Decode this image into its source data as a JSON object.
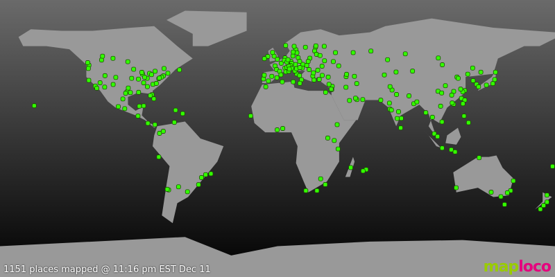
{
  "status": "1151 places mapped @ 11:16 pm EST Dec 11",
  "logo": {
    "part1": "map",
    "part2": "loco"
  },
  "colors": {
    "land": "#999999",
    "marker": "#33ff00",
    "logo_map": "#99cc00",
    "logo_loco": "#e6007e"
  },
  "projection": "equirectangular",
  "markers": [
    [
      -122.4,
      37.8
    ],
    [
      -118.2,
      34.1
    ],
    [
      -117.2,
      32.7
    ],
    [
      -122.3,
      47.6
    ],
    [
      -122.7,
      45.5
    ],
    [
      -123.1,
      49.3
    ],
    [
      -114.1,
      51.0
    ],
    [
      -113.5,
      53.5
    ],
    [
      -104.9,
      39.7
    ],
    [
      -112.1,
      33.4
    ],
    [
      -115.1,
      36.2
    ],
    [
      -111.9,
      40.8
    ],
    [
      -106.6,
      35.1
    ],
    [
      -97.7,
      30.3
    ],
    [
      -96.8,
      32.8
    ],
    [
      -95.4,
      29.8
    ],
    [
      -98.5,
      29.4
    ],
    [
      -90.1,
      30.0
    ],
    [
      -84.4,
      33.7
    ],
    [
      -80.2,
      25.8
    ],
    [
      -81.4,
      28.5
    ],
    [
      -82.5,
      27.9
    ],
    [
      -77.0,
      38.9
    ],
    [
      -74.0,
      40.7
    ],
    [
      -71.1,
      42.4
    ],
    [
      -75.2,
      39.9
    ],
    [
      -79.4,
      43.7
    ],
    [
      -73.6,
      45.5
    ],
    [
      -87.6,
      41.9
    ],
    [
      -83.0,
      42.3
    ],
    [
      -81.7,
      41.5
    ],
    [
      -93.3,
      45.0
    ],
    [
      -90.2,
      38.6
    ],
    [
      -94.6,
      39.1
    ],
    [
      -86.8,
      36.2
    ],
    [
      -80.8,
      35.2
    ],
    [
      -78.6,
      35.8
    ],
    [
      -76.6,
      39.3
    ],
    [
      -84.5,
      39.1
    ],
    [
      -86.2,
      39.8
    ],
    [
      -88.0,
      43.0
    ],
    [
      -97.1,
      49.9
    ],
    [
      -106.7,
      52.1
    ],
    [
      -63.6,
      44.6
    ],
    [
      -99.1,
      19.4
    ],
    [
      -103.3,
      20.7
    ],
    [
      -100.3,
      25.7
    ],
    [
      -89.6,
      21.0
    ],
    [
      -86.8,
      21.2
    ],
    [
      -90.5,
      14.6
    ],
    [
      -84.1,
      9.9
    ],
    [
      -79.5,
      9.0
    ],
    [
      -76.5,
      3.4
    ],
    [
      -74.1,
      4.7
    ],
    [
      -66.9,
      10.5
    ],
    [
      -66.1,
      18.4
    ],
    [
      -61.5,
      16.2
    ],
    [
      -157.8,
      21.3
    ],
    [
      -77.0,
      -12.0
    ],
    [
      -46.6,
      -23.5
    ],
    [
      -43.2,
      -22.9
    ],
    [
      -49.3,
      -25.4
    ],
    [
      -51.2,
      -30.0
    ],
    [
      -58.4,
      -34.6
    ],
    [
      -64.2,
      -31.4
    ],
    [
      -70.6,
      -33.4
    ],
    [
      -71.5,
      -33.0
    ],
    [
      -0.1,
      51.5
    ],
    [
      -2.2,
      53.5
    ],
    [
      -3.2,
      55.9
    ],
    [
      -6.3,
      53.3
    ],
    [
      -8.5,
      51.9
    ],
    [
      2.4,
      48.9
    ],
    [
      4.8,
      45.8
    ],
    [
      5.4,
      43.3
    ],
    [
      -1.6,
      47.2
    ],
    [
      -0.6,
      44.8
    ],
    [
      1.4,
      43.6
    ],
    [
      7.3,
      43.7
    ],
    [
      -3.7,
      40.4
    ],
    [
      2.2,
      41.4
    ],
    [
      -0.4,
      39.5
    ],
    [
      -5.9,
      37.4
    ],
    [
      -9.1,
      38.7
    ],
    [
      -8.6,
      41.2
    ],
    [
      4.9,
      52.4
    ],
    [
      4.4,
      50.8
    ],
    [
      6.1,
      49.6
    ],
    [
      13.4,
      52.5
    ],
    [
      10.0,
      53.6
    ],
    [
      11.6,
      48.1
    ],
    [
      8.7,
      50.1
    ],
    [
      6.8,
      51.2
    ],
    [
      9.2,
      48.8
    ],
    [
      8.5,
      47.4
    ],
    [
      6.1,
      46.2
    ],
    [
      7.4,
      46.9
    ],
    [
      16.4,
      48.2
    ],
    [
      14.4,
      50.1
    ],
    [
      19.0,
      47.5
    ],
    [
      21.0,
      52.2
    ],
    [
      19.9,
      50.1
    ],
    [
      12.5,
      41.9
    ],
    [
      9.2,
      45.5
    ],
    [
      11.3,
      43.8
    ],
    [
      14.3,
      40.9
    ],
    [
      7.7,
      45.1
    ],
    [
      12.3,
      45.4
    ],
    [
      15.6,
      38.2
    ],
    [
      23.7,
      38.0
    ],
    [
      22.9,
      40.6
    ],
    [
      26.1,
      44.4
    ],
    [
      23.3,
      42.7
    ],
    [
      20.5,
      44.8
    ],
    [
      16.0,
      45.8
    ],
    [
      14.5,
      46.1
    ],
    [
      24.1,
      56.9
    ],
    [
      25.3,
      54.7
    ],
    [
      24.7,
      59.4
    ],
    [
      24.9,
      60.2
    ],
    [
      18.1,
      59.3
    ],
    [
      11.9,
      57.7
    ],
    [
      10.8,
      59.9
    ],
    [
      5.3,
      60.4
    ],
    [
      12.6,
      55.7
    ],
    [
      10.2,
      56.2
    ],
    [
      30.3,
      59.9
    ],
    [
      37.6,
      55.8
    ],
    [
      30.5,
      50.5
    ],
    [
      27.6,
      53.9
    ],
    [
      28.9,
      47.0
    ],
    [
      36.2,
      50.0
    ],
    [
      39.7,
      47.2
    ],
    [
      49.1,
      55.8
    ],
    [
      60.6,
      56.8
    ],
    [
      29.0,
      41.0
    ],
    [
      32.9,
      39.9
    ],
    [
      27.1,
      38.4
    ],
    [
      35.5,
      33.9
    ],
    [
      35.2,
      31.8
    ],
    [
      34.8,
      32.1
    ],
    [
      31.2,
      30.0
    ],
    [
      44.4,
      33.3
    ],
    [
      51.4,
      35.7
    ],
    [
      46.7,
      24.7
    ],
    [
      55.3,
      25.3
    ],
    [
      51.5,
      25.3
    ],
    [
      50.6,
      26.2
    ],
    [
      44.5,
      40.2
    ],
    [
      44.8,
      41.7
    ],
    [
      49.9,
      40.4
    ],
    [
      33.4,
      35.2
    ],
    [
      14.5,
      35.9
    ],
    [
      10.2,
      36.8
    ],
    [
      3.1,
      36.8
    ],
    [
      -7.6,
      33.6
    ],
    [
      72.9,
      19.1
    ],
    [
      77.2,
      28.6
    ],
    [
      77.6,
      13.0
    ],
    [
      80.3,
      13.1
    ],
    [
      78.5,
      17.4
    ],
    [
      88.4,
      22.6
    ],
    [
      73.9,
      18.5
    ],
    [
      72.6,
      23.0
    ],
    [
      74.3,
      31.5
    ],
    [
      67.0,
      24.9
    ],
    [
      73.0,
      33.7
    ],
    [
      85.3,
      27.7
    ],
    [
      90.4,
      23.8
    ],
    [
      79.9,
      6.9
    ],
    [
      100.5,
      13.8
    ],
    [
      101.7,
      3.1
    ],
    [
      103.8,
      1.3
    ],
    [
      106.8,
      -6.2
    ],
    [
      112.7,
      -7.3
    ],
    [
      115.2,
      -8.7
    ],
    [
      106.7,
      10.8
    ],
    [
      105.8,
      21.0
    ],
    [
      96.2,
      16.8
    ],
    [
      121.0,
      14.6
    ],
    [
      123.9,
      10.3
    ],
    [
      114.2,
      22.3
    ],
    [
      113.3,
      23.1
    ],
    [
      121.5,
      31.2
    ],
    [
      120.2,
      30.3
    ],
    [
      118.8,
      32.1
    ],
    [
      116.4,
      39.9
    ],
    [
      117.2,
      39.1
    ],
    [
      123.4,
      41.8
    ],
    [
      126.6,
      45.8
    ],
    [
      104.1,
      30.7
    ],
    [
      106.5,
      29.6
    ],
    [
      108.9,
      34.3
    ],
    [
      114.3,
      30.6
    ],
    [
      113.0,
      28.2
    ],
    [
      119.3,
      26.1
    ],
    [
      121.5,
      25.0
    ],
    [
      120.3,
      22.6
    ],
    [
      126.9,
      37.6
    ],
    [
      129.1,
      35.2
    ],
    [
      139.7,
      35.7
    ],
    [
      135.5,
      34.7
    ],
    [
      130.4,
      33.6
    ],
    [
      141.4,
      43.1
    ],
    [
      140.9,
      38.3
    ],
    [
      87.6,
      43.8
    ],
    [
      76.9,
      43.2
    ],
    [
      69.3,
      41.3
    ],
    [
      71.4,
      51.2
    ],
    [
      82.9,
      55.0
    ],
    [
      104.3,
      52.3
    ],
    [
      131.9,
      43.1
    ],
    [
      106.9,
      47.9
    ],
    [
      28.0,
      -26.2
    ],
    [
      18.4,
      -33.9
    ],
    [
      31.0,
      -29.9
    ],
    [
      25.6,
      -33.9
    ],
    [
      36.8,
      -1.3
    ],
    [
      32.6,
      0.3
    ],
    [
      39.3,
      -6.8
    ],
    [
      38.7,
      9.0
    ],
    [
      3.4,
      6.5
    ],
    [
      -0.2,
      5.6
    ],
    [
      -17.4,
      14.7
    ],
    [
      47.5,
      -18.9
    ],
    [
      57.5,
      -20.2
    ],
    [
      55.5,
      -21.1
    ],
    [
      151.2,
      -33.9
    ],
    [
      144.9,
      -37.8
    ],
    [
      153.0,
      -27.5
    ],
    [
      138.6,
      -34.9
    ],
    [
      115.9,
      -32.0
    ],
    [
      149.1,
      -35.3
    ],
    [
      147.3,
      -42.9
    ],
    [
      130.8,
      -12.5
    ],
    [
      174.8,
      -36.8
    ],
    [
      174.8,
      -41.3
    ],
    [
      172.6,
      -43.5
    ],
    [
      170.5,
      -45.9
    ],
    [
      178.4,
      -18.1
    ]
  ]
}
